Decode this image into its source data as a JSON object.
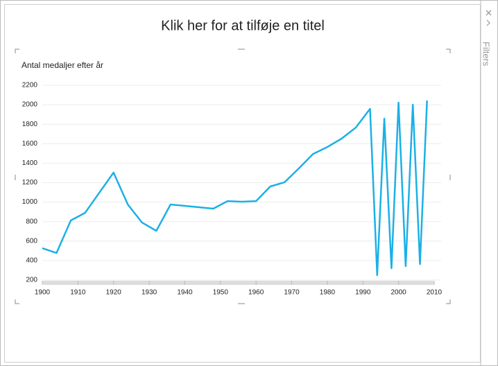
{
  "chart_data": {
    "type": "line",
    "title": "Klik her for at tilføje en titel",
    "y_label": "Antal medaljer efter år",
    "x": [
      1900,
      1904,
      1908,
      1912,
      1920,
      1924,
      1928,
      1932,
      1936,
      1948,
      1952,
      1956,
      1960,
      1964,
      1968,
      1972,
      1976,
      1980,
      1984,
      1988,
      1992,
      1994,
      1996,
      1998,
      2000,
      2002,
      2004,
      2006,
      2008
    ],
    "series": [
      {
        "color": "#1bb0e6",
        "values": [
          527,
          478,
          812,
          890,
          1303,
          976,
          790,
          705,
          976,
          933,
          1011,
          1004,
          1011,
          1161,
          1204,
          1346,
          1495,
          1566,
          1652,
          1766,
          1958,
          250,
          1858,
          321,
          2022,
          342,
          2001,
          364,
          2043
        ]
      }
    ],
    "xlim": [
      1900,
      2010
    ],
    "xticks": [
      1900,
      1910,
      1920,
      1930,
      1940,
      1950,
      1960,
      1970,
      1980,
      1990,
      2000,
      2010
    ],
    "ylim": [
      160,
      2240
    ],
    "yticks": [
      200,
      400,
      600,
      800,
      1000,
      1200,
      1400,
      1600,
      1800,
      2000,
      2200
    ],
    "grid": true
  },
  "pane": {
    "label": "Filters"
  }
}
